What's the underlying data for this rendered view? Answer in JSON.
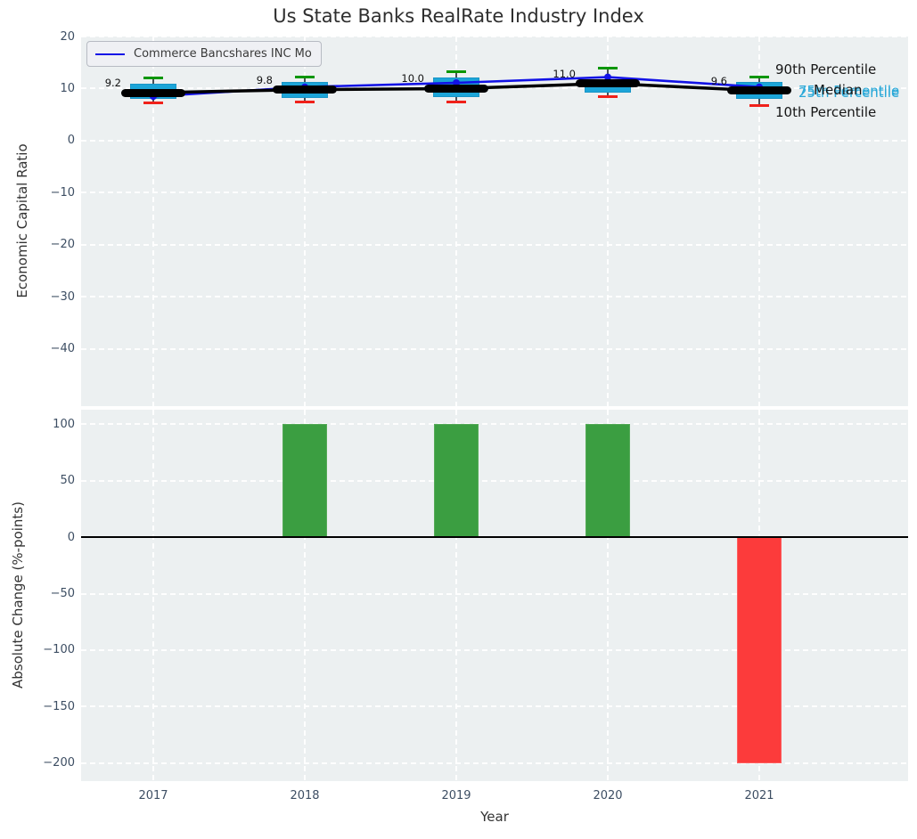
{
  "title": "Us State Banks RealRate Industry Index",
  "legend": {
    "series_label": "Commerce Bancshares INC Mo"
  },
  "annotations": {
    "p90": "90th Percentile",
    "p75": "75th Percentile",
    "p25": "25th Percentile",
    "median": "Median",
    "p10": "10th Percentile"
  },
  "colors": {
    "plot_bg": "#ECF0F1",
    "grid": "#FFFFFF",
    "box_fill": "#1CA5D8",
    "median_bar": "#000000",
    "median_line": "#000000",
    "company_line": "#1212E6",
    "cap_90": "#0A9600",
    "cap_10": "#F0211A",
    "whisker": "#4a4f55",
    "bar_positive": "#3B9E41",
    "bar_negative": "#FC3B3B",
    "tick_label": "#3D4E63",
    "annotation_cyan": "#29A8D8"
  },
  "chart_data": [
    {
      "type": "boxplot-line",
      "title": "Us State Banks RealRate Industry Index",
      "ylabel": "Economic Capital Ratio",
      "categories": [
        "2017",
        "2018",
        "2019",
        "2020",
        "2021"
      ],
      "yticks": [
        20,
        10,
        0,
        -10,
        -20,
        -30,
        -40
      ],
      "ylim": [
        -51,
        20
      ],
      "grid": true,
      "legend_position": "upper left",
      "median_labels": [
        "9.2",
        "9.8",
        "10.0",
        "11.0",
        "9.6"
      ],
      "series": [
        {
          "name": "Median",
          "values": [
            9.2,
            9.8,
            10.0,
            11.0,
            9.6
          ]
        },
        {
          "name": "90th Percentile",
          "values": [
            12.0,
            12.3,
            13.2,
            14.0,
            12.2
          ]
        },
        {
          "name": "75th Percentile",
          "values": [
            11.0,
            11.3,
            12.1,
            11.4,
            11.2
          ]
        },
        {
          "name": "25th Percentile",
          "values": [
            8.0,
            8.2,
            8.4,
            9.2,
            8.0
          ]
        },
        {
          "name": "10th Percentile",
          "values": [
            7.3,
            7.5,
            7.5,
            8.5,
            6.8
          ]
        },
        {
          "name": "Commerce Bancshares INC Mo",
          "values": [
            8.5,
            10.3,
            11.1,
            12.2,
            10.3
          ]
        }
      ]
    },
    {
      "type": "bar",
      "ylabel": "Absolute Change (%-points)",
      "xlabel": "Year",
      "categories": [
        "2017",
        "2018",
        "2019",
        "2020",
        "2021"
      ],
      "values": [
        0,
        100,
        100,
        100,
        -200
      ],
      "yticks": [
        100,
        50,
        0,
        -50,
        -100,
        -150,
        -200
      ],
      "ylim": [
        -216,
        113
      ],
      "grid": true
    }
  ]
}
